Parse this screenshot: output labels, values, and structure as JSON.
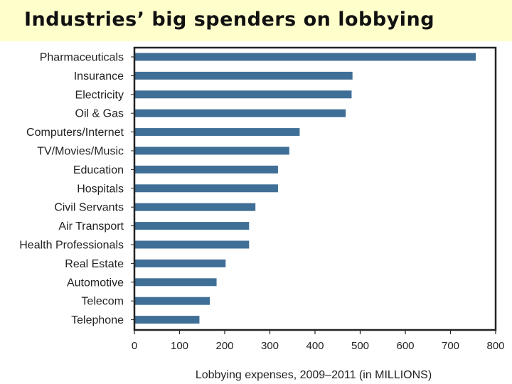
{
  "title": "Industries’ big spenders on lobbying",
  "colors": {
    "background": "#ffffcc",
    "bar": "#3f6f97",
    "frame": "#222222"
  },
  "chart_data": {
    "type": "bar",
    "orientation": "horizontal",
    "categories": [
      "Pharmaceuticals",
      "Insurance",
      "Electricity",
      "Oil & Gas",
      "Computers/Internet",
      "TV/Movies/Music",
      "Education",
      "Hospitals",
      "Civil Servants",
      "Air Transport",
      "Health Professionals",
      "Real Estate",
      "Automotive",
      "Telecom",
      "Telephone"
    ],
    "values": [
      756,
      483,
      481,
      468,
      366,
      343,
      318,
      318,
      268,
      254,
      254,
      202,
      182,
      167,
      144
    ],
    "xlabel": "Lobbying expenses, 2009–2011 (in MILLIONS)",
    "xlim": [
      0,
      800
    ],
    "xticks": [
      0,
      100,
      200,
      300,
      400,
      500,
      600,
      700,
      800
    ],
    "grid": false,
    "legend": false
  }
}
